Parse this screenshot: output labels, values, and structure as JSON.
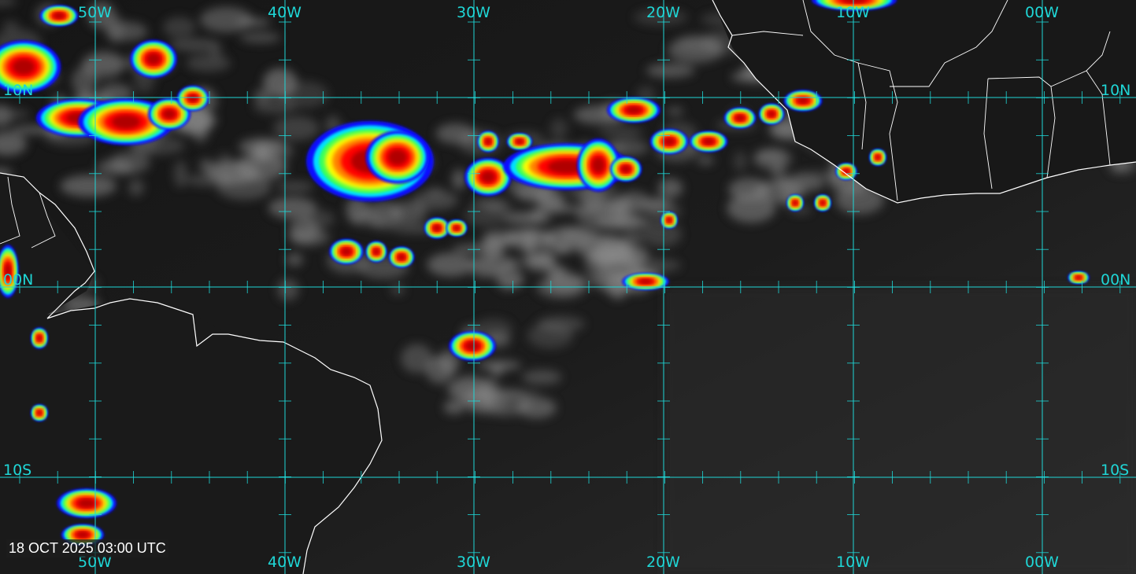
{
  "timestamp": "18 OCT 2025 03:00 UTC",
  "grid": {
    "color": "#1fd6d6",
    "longitude_labels": [
      "50W",
      "40W",
      "30W",
      "20W",
      "10W",
      "00W"
    ],
    "latitude_labels": [
      "10N",
      "00N",
      "10S"
    ]
  },
  "colors": {
    "coastline": "#ffffff",
    "cloud": "#9a9a9a",
    "ocean": "#141414",
    "convection_palette": [
      "#1010ff",
      "#00e0ff",
      "#30ff60",
      "#ffff00",
      "#ff8000",
      "#ff0000",
      "#b00000"
    ]
  }
}
